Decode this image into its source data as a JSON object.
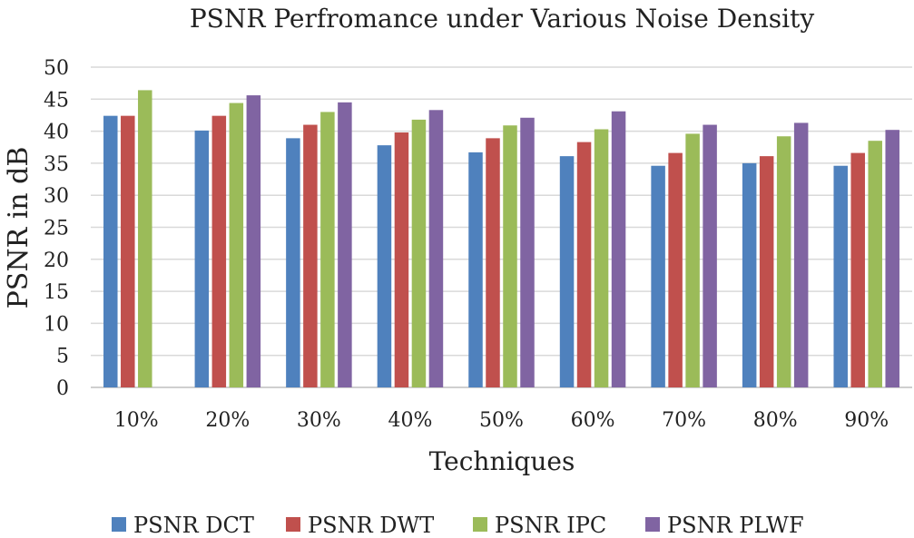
{
  "chart_data": {
    "type": "bar",
    "title": "PSNR Perfromance under Various Noise Density",
    "xlabel": "Techniques",
    "ylabel": "PSNR in dB",
    "ylim": [
      0,
      50
    ],
    "yticks": [
      "0",
      "5",
      "10",
      "15",
      "20",
      "25",
      "30",
      "35",
      "40",
      "45",
      "50"
    ],
    "grid": true,
    "legend_position": "bottom",
    "categories": [
      "10%",
      "20%",
      "30%",
      "40%",
      "50%",
      "60%",
      "70%",
      "80%",
      "90%"
    ],
    "series": [
      {
        "name": "PSNR DCT",
        "color": "#4f81bd",
        "values": [
          42.4,
          40.1,
          38.9,
          37.8,
          36.7,
          36.1,
          34.6,
          35.0,
          34.6
        ]
      },
      {
        "name": "PSNR DWT",
        "color": "#c0504d",
        "values": [
          42.4,
          42.4,
          41.0,
          39.8,
          38.9,
          38.3,
          36.6,
          36.1,
          36.6
        ]
      },
      {
        "name": "PSNR IPC",
        "color": "#9bbb59",
        "values": [
          46.4,
          44.4,
          43.0,
          41.8,
          40.9,
          40.3,
          39.6,
          39.2,
          38.5
        ]
      },
      {
        "name": "PSNR PLWF",
        "color": "#8064a2",
        "values": [
          null,
          45.6,
          44.5,
          43.3,
          42.1,
          43.1,
          41.0,
          41.3,
          40.2
        ]
      }
    ]
  }
}
